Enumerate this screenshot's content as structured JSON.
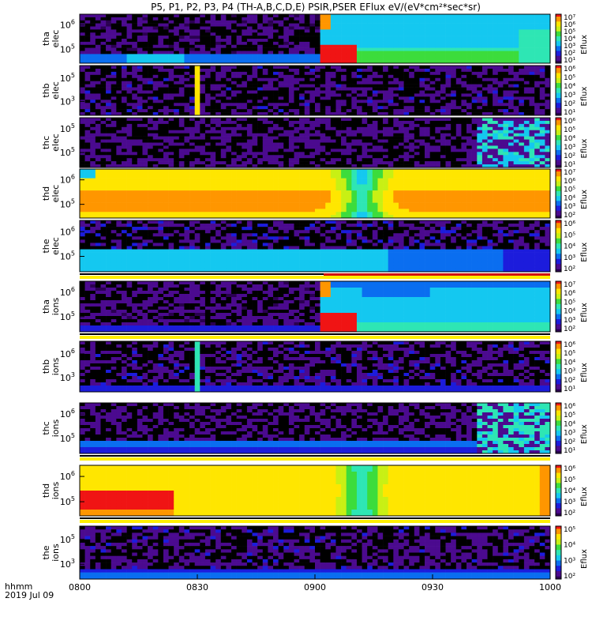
{
  "title": "P5, P1, P2, P3, P4 (TH-A,B,C,D,E) PSIR,PSER EFlux eV/(eV*cm²*sec*sr)",
  "colorbar_label": "Eflux",
  "time_axis": {
    "unit_label": "hhmm",
    "date_label": "2019 Jul 09",
    "ticks": [
      "0800",
      "0830",
      "0900",
      "0930",
      "1000"
    ]
  },
  "chart_data": {
    "type": "heatmap",
    "x_range_minutes": [
      0,
      120
    ],
    "panels": [
      {
        "id": "tha-elec",
        "label": [
          "tha",
          "elec"
        ],
        "y_ticks": [
          {
            "base": "10",
            "exp": "6",
            "v": 0.22
          },
          {
            "base": "10",
            "exp": "5",
            "v": 0.72
          }
        ],
        "cbar_ticks": [
          "10⁷",
          "10⁶",
          "10⁵",
          "10⁴",
          "10³",
          "10²",
          "10¹"
        ],
        "bar": false
      },
      {
        "id": "thb-elec",
        "label": [
          "thb",
          "elec"
        ],
        "y_ticks": [
          {
            "base": "10",
            "exp": "5",
            "v": 0.25
          },
          {
            "base": "10",
            "exp": "3",
            "v": 0.72
          }
        ],
        "cbar_ticks": [
          "10⁶",
          "10⁵",
          "10⁴",
          "10³",
          "10²",
          "10¹"
        ],
        "bar": false
      },
      {
        "id": "thc-elec",
        "label": [
          "thc",
          "elec"
        ],
        "y_ticks": [
          {
            "base": "10",
            "exp": "5",
            "v": 0.22
          },
          {
            "base": "10",
            "exp": "5",
            "v": 0.7
          }
        ],
        "cbar_ticks": [
          "10⁶",
          "10⁵",
          "10⁴",
          "10³",
          "10²",
          "10¹"
        ],
        "bar": false
      },
      {
        "id": "thd-elec",
        "label": [
          "thd",
          "elec"
        ],
        "y_ticks": [
          {
            "base": "10",
            "exp": "6",
            "v": 0.22
          },
          {
            "base": "10",
            "exp": "5",
            "v": 0.72
          }
        ],
        "cbar_ticks": [
          "10⁷",
          "10⁶",
          "10⁵",
          "10⁴",
          "10³",
          "10²"
        ],
        "bar": false
      },
      {
        "id": "the-elec",
        "label": [
          "the",
          "elec"
        ],
        "y_ticks": [
          {
            "base": "10",
            "exp": "6",
            "v": 0.22
          },
          {
            "base": "10",
            "exp": "5",
            "v": 0.7
          }
        ],
        "cbar_ticks": [
          "10⁶",
          "10⁵",
          "10⁴",
          "10³",
          "10²"
        ],
        "bar": true
      },
      {
        "id": "tha-ions",
        "label": [
          "tha",
          "ions"
        ],
        "y_ticks": [
          {
            "base": "10",
            "exp": "6",
            "v": 0.22
          },
          {
            "base": "10",
            "exp": "5",
            "v": 0.7
          }
        ],
        "cbar_ticks": [
          "10⁷",
          "10⁶",
          "10⁵",
          "10⁴",
          "10³",
          "10²"
        ],
        "bar": true
      },
      {
        "id": "thb-ions",
        "label": [
          "thb",
          "ions"
        ],
        "y_ticks": [
          {
            "base": "10",
            "exp": "6",
            "v": 0.25
          },
          {
            "base": "10",
            "exp": "3",
            "v": 0.72
          }
        ],
        "cbar_ticks": [
          "10⁶",
          "10⁵",
          "10⁴",
          "10³",
          "10²",
          "10¹"
        ],
        "bar": false
      },
      {
        "id": "thc-ions",
        "label": [
          "thc",
          "ions"
        ],
        "y_ticks": [
          {
            "base": "10",
            "exp": "6",
            "v": 0.22
          },
          {
            "base": "10",
            "exp": "5",
            "v": 0.7
          }
        ],
        "cbar_ticks": [
          "10⁶",
          "10⁵",
          "10⁴",
          "10³",
          "10²",
          "10¹"
        ],
        "bar": true
      },
      {
        "id": "thd-ions",
        "label": [
          "thd",
          "ions"
        ],
        "y_ticks": [
          {
            "base": "10",
            "exp": "6",
            "v": 0.22
          },
          {
            "base": "10",
            "exp": "5",
            "v": 0.72
          }
        ],
        "cbar_ticks": [
          "10⁶",
          "10⁵",
          "10⁴",
          "10³",
          "10²"
        ],
        "bar": true
      },
      {
        "id": "the-ions",
        "label": [
          "the",
          "ions"
        ],
        "y_ticks": [
          {
            "base": "10",
            "exp": "5",
            "v": 0.25
          },
          {
            "base": "10",
            "exp": "3",
            "v": 0.72
          }
        ],
        "cbar_ticks": [
          "10⁵",
          "10⁴",
          "10³",
          "10²"
        ],
        "bar": false
      }
    ],
    "colormap": [
      "#2a0050",
      "#4b0a8f",
      "#1c1cdc",
      "#0a6ef0",
      "#14c8f0",
      "#2ee6b4",
      "#3cdc3c",
      "#c8f014",
      "#ffe600",
      "#ff9600",
      "#f01414"
    ]
  }
}
